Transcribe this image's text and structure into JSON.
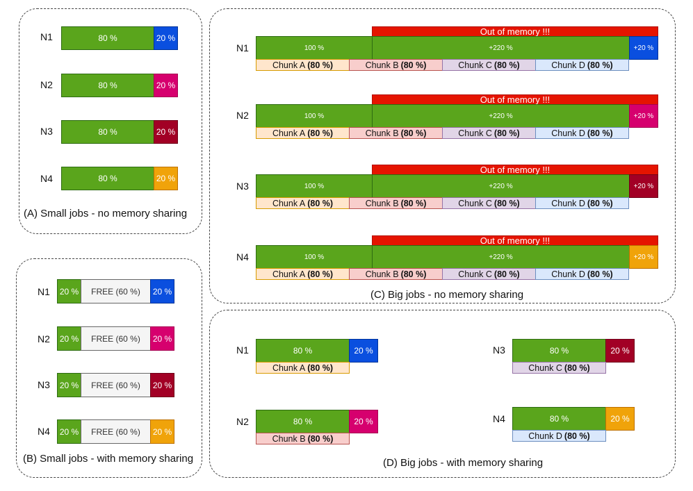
{
  "colors": {
    "green": "#5aa51c",
    "blue": "#0a4fdf",
    "pink": "#d6006e",
    "maroon": "#a20025",
    "orange": "#f0a30a",
    "red": "#e51400",
    "free": "#f5f5f5"
  },
  "panelA": {
    "caption": "(A) Small jobs - no memory sharing",
    "rows": [
      {
        "node": "N1",
        "main": "80 %",
        "extra": "20 %"
      },
      {
        "node": "N2",
        "main": "80 %",
        "extra": "20 %"
      },
      {
        "node": "N3",
        "main": "80 %",
        "extra": "20 %"
      },
      {
        "node": "N4",
        "main": "80 %",
        "extra": "20 %"
      }
    ]
  },
  "panelB": {
    "caption": "(B) Small jobs - with memory sharing",
    "rows": [
      {
        "node": "N1",
        "used": "20 %",
        "free": "FREE (60 %)",
        "extra": "20 %"
      },
      {
        "node": "N2",
        "used": "20 %",
        "free": "FREE (60 %)",
        "extra": "20 %"
      },
      {
        "node": "N3",
        "used": "20 %",
        "free": "FREE (60 %)",
        "extra": "20 %"
      },
      {
        "node": "N4",
        "used": "20 %",
        "free": "FREE (60 %)",
        "extra": "20 %"
      }
    ]
  },
  "panelC": {
    "caption": "(C) Big jobs - no memory sharing",
    "rows": [
      {
        "node": "N1",
        "oom": "Out of memory !!!",
        "base": "100 %",
        "over": "+220 %",
        "extra": "+20 %"
      },
      {
        "node": "N2",
        "oom": "Out of memory !!!",
        "base": "100 %",
        "over": "+220 %",
        "extra": "+20 %"
      },
      {
        "node": "N3",
        "oom": "Out of memory !!!",
        "base": "100 %",
        "over": "+220 %",
        "extra": "+20 %"
      },
      {
        "node": "N4",
        "oom": "Out of memory !!!",
        "base": "100 %",
        "over": "+220 %",
        "extra": "+20 %"
      }
    ],
    "chunks": [
      {
        "name": "Chunk A",
        "pct": "(80 %)"
      },
      {
        "name": "Chunk B",
        "pct": "(80 %)"
      },
      {
        "name": "Chunk C",
        "pct": "(80 %)"
      },
      {
        "name": "Chunk D",
        "pct": "(80 %)"
      }
    ]
  },
  "panelD": {
    "caption": "(D) Big jobs - with memory sharing",
    "items": [
      {
        "node": "N1",
        "main": "80 %",
        "extra": "20 %",
        "chunk": "Chunk A",
        "pct": "(80 %)"
      },
      {
        "node": "N2",
        "main": "80 %",
        "extra": "20 %",
        "chunk": "Chunk B",
        "pct": "(80 %)"
      },
      {
        "node": "N3",
        "main": "80 %",
        "extra": "20 %",
        "chunk": "Chunk C",
        "pct": "(80 %)"
      },
      {
        "node": "N4",
        "main": "80 %",
        "extra": "20 %",
        "chunk": "Chunk D",
        "pct": "(80 %)"
      }
    ]
  }
}
